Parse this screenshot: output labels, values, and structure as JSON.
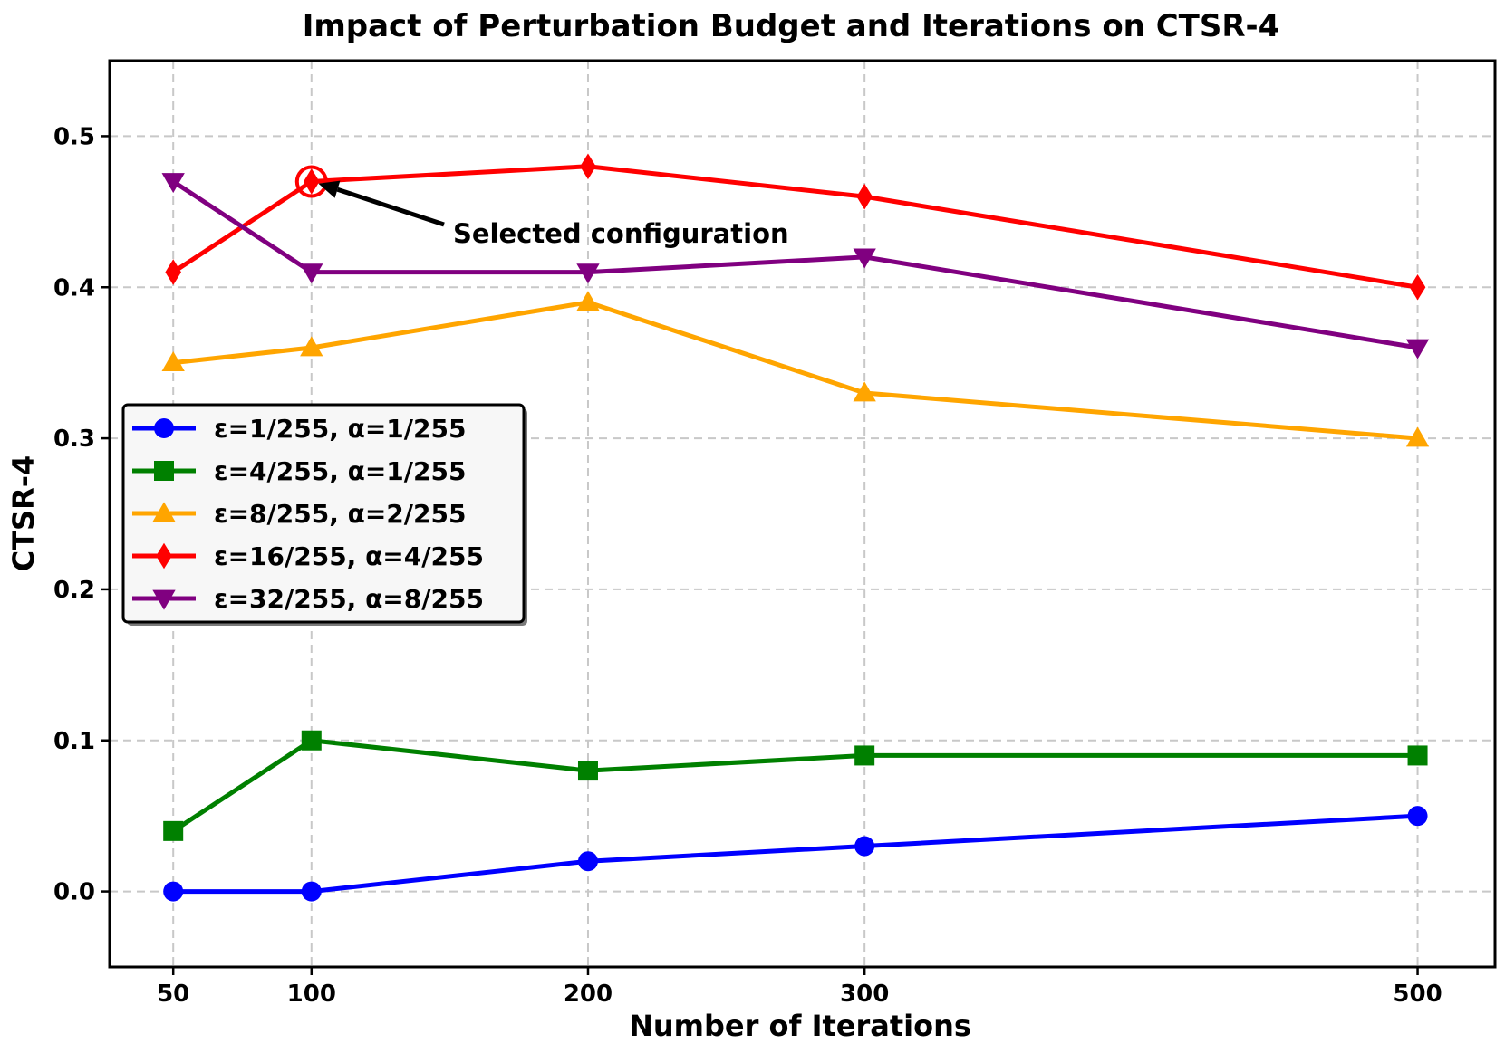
{
  "chart_data": {
    "type": "line",
    "title": "Impact of Perturbation Budget and Iterations on CTSR-4",
    "xlabel": "Number of Iterations",
    "ylabel": "CTSR-4",
    "x": [
      50,
      100,
      200,
      300,
      500
    ],
    "x_tick_labels": [
      "50",
      "100",
      "200",
      "300",
      "500"
    ],
    "xlim": [
      27,
      528
    ],
    "ylim": [
      -0.05,
      0.55
    ],
    "y_ticks": [
      0.0,
      0.1,
      0.2,
      0.3,
      0.4,
      0.5
    ],
    "y_tick_labels": [
      "0.0",
      "0.1",
      "0.2",
      "0.3",
      "0.4",
      "0.5"
    ],
    "grid": true,
    "legend_position": "center-left",
    "series": [
      {
        "name": "ε=1/255, α=1/255",
        "color": "#0000ff",
        "marker": "circle",
        "values": [
          0.0,
          0.0,
          0.02,
          0.03,
          0.05
        ]
      },
      {
        "name": "ε=4/255, α=1/255",
        "color": "#008000",
        "marker": "square",
        "values": [
          0.04,
          0.1,
          0.08,
          0.09,
          0.09
        ]
      },
      {
        "name": "ε=8/255, α=2/255",
        "color": "#ffa500",
        "marker": "triangle-up",
        "values": [
          0.35,
          0.36,
          0.39,
          0.33,
          0.3
        ]
      },
      {
        "name": "ε=16/255, α=4/255",
        "color": "#ff0000",
        "marker": "diamond",
        "values": [
          0.41,
          0.47,
          0.48,
          0.46,
          0.4
        ]
      },
      {
        "name": "ε=32/255, α=8/255",
        "color": "#800080",
        "marker": "triangle-down",
        "values": [
          0.47,
          0.41,
          0.41,
          0.42,
          0.36
        ]
      }
    ],
    "annotation": {
      "text": "Selected configuration",
      "point": {
        "x": 100,
        "y": 0.47
      },
      "color": "#ff0000"
    }
  }
}
